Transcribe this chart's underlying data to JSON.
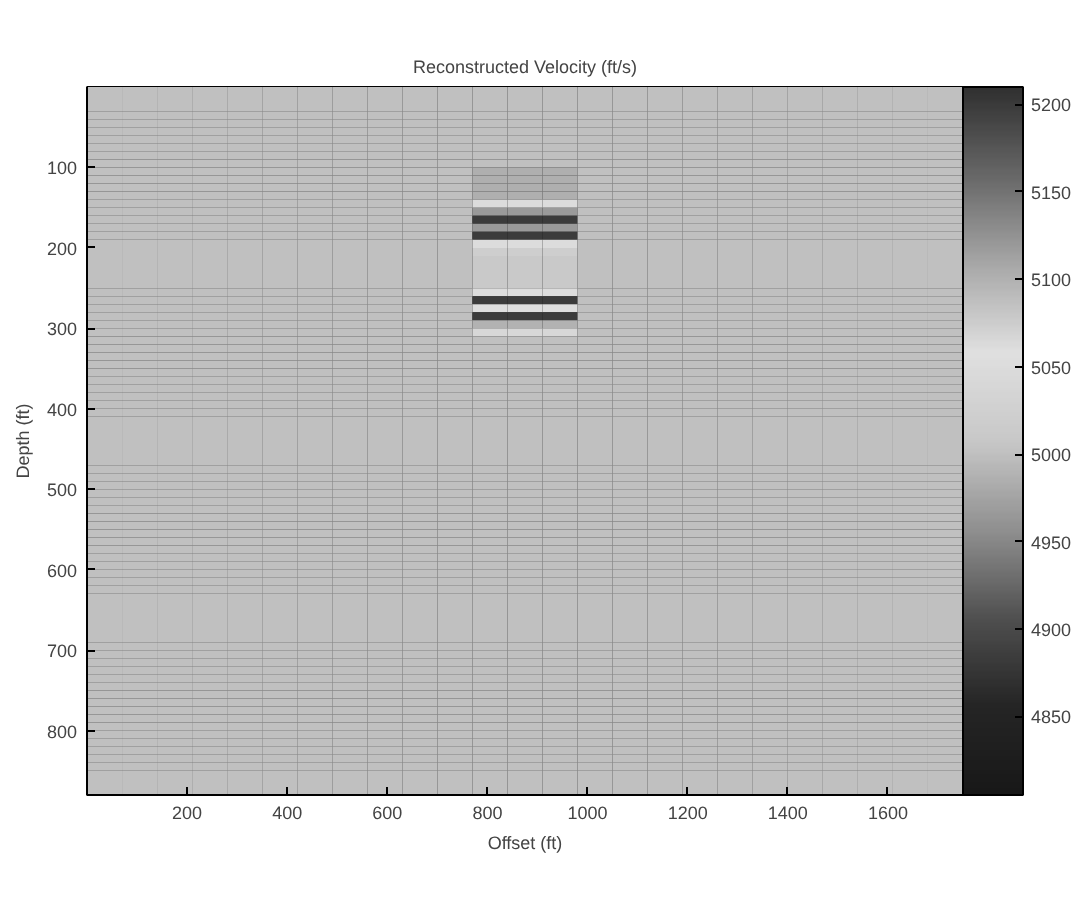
{
  "chart_data": {
    "type": "heatmap",
    "title": "Reconstructed Velocity (ft/s)",
    "xlabel": "Offset (ft)",
    "ylabel": "Depth (ft)",
    "xlim": [
      0,
      1750
    ],
    "ylim": [
      880,
      0
    ],
    "xticks": [
      200,
      400,
      600,
      800,
      1000,
      1200,
      1400,
      1600
    ],
    "yticks": [
      100,
      200,
      300,
      400,
      500,
      600,
      700,
      800
    ],
    "clim": [
      4805,
      5210
    ],
    "cticks": [
      4850,
      4900,
      4950,
      5000,
      5050,
      5100,
      5150,
      5200
    ],
    "colors": [
      "#181818",
      "#252525",
      "#505050",
      "#909090",
      "#c8c8c8",
      "#e0e0e0",
      "#a8a8a8",
      "#686868",
      "#303030"
    ],
    "cells": [
      [
        5000,
        5000,
        5000,
        5000,
        5000,
        5000,
        5000,
        5000,
        5000,
        5000,
        5000,
        5000,
        5000,
        5000,
        5000,
        5000,
        5000,
        5000,
        5000,
        5000,
        5000,
        5000,
        5000,
        5000,
        5000
      ],
      [
        5000,
        5000,
        5000,
        5000,
        5000,
        5000,
        5000,
        5000,
        5000,
        5000,
        5000,
        5000,
        5000,
        5000,
        5000,
        5000,
        5000,
        5000,
        5000,
        5000,
        5000,
        5000,
        5000,
        5000,
        5000
      ],
      [
        5000,
        5000,
        5000,
        5000,
        5000,
        5000,
        5000,
        5000,
        5000,
        5000,
        5000,
        5000,
        5000,
        5000,
        5000,
        5000,
        5000,
        5000,
        5000,
        5000,
        5000,
        5000,
        5000,
        5000,
        5000
      ],
      [
        5000,
        5000,
        5000,
        5000,
        5000,
        5000,
        5000,
        5000,
        5000,
        5000,
        5000,
        5000,
        5000,
        5000,
        5000,
        5000,
        5000,
        5000,
        5000,
        5000,
        5000,
        5000,
        5000,
        5000,
        5000
      ],
      [
        5000,
        5000,
        5000,
        5000,
        5000,
        5000,
        5000,
        5000,
        5000,
        5000,
        5000,
        5000,
        5000,
        5000,
        5000,
        5000,
        5000,
        5000,
        5000,
        5000,
        5000,
        5000,
        5000,
        5000,
        5000
      ],
      [
        5000,
        5000,
        5000,
        5000,
        5000,
        5000,
        5000,
        5000,
        5000,
        5000,
        5000,
        5000,
        5000,
        5000,
        5000,
        5000,
        5000,
        5000,
        5000,
        5000,
        5000,
        5000,
        5000,
        5000,
        5000
      ],
      [
        5000,
        5000,
        5000,
        5000,
        5000,
        5000,
        5000,
        5000,
        5000,
        5000,
        5000,
        5000,
        5000,
        5000,
        5000,
        5000,
        5000,
        5000,
        5000,
        5000,
        5000,
        5000,
        5000,
        5000,
        5000
      ],
      [
        5000,
        5000,
        5000,
        5000,
        5000,
        5000,
        5000,
        5000,
        5000,
        5000,
        5000,
        5000,
        5000,
        5000,
        5000,
        5000,
        5000,
        5000,
        5000,
        5000,
        5000,
        5000,
        5000,
        5000,
        5000
      ],
      [
        5000,
        5000,
        5000,
        5000,
        5000,
        5000,
        5000,
        5000,
        5000,
        5000,
        5000,
        5000,
        5000,
        5000,
        5000,
        5000,
        5000,
        5000,
        5000,
        5000,
        5000,
        5000,
        5000,
        5000,
        5000
      ],
      [
        5000,
        5000,
        5000,
        5000,
        5000,
        5000,
        5000,
        5000,
        5000,
        5000,
        5000,
        5000,
        5000,
        5000,
        5000,
        5000,
        5000,
        5000,
        5000,
        5000,
        5000,
        5000,
        5000,
        5000,
        5000
      ],
      [
        5000,
        5000,
        5000,
        5000,
        5000,
        5000,
        5000,
        5000,
        5000,
        5000,
        5000,
        4985,
        4985,
        4985,
        5000,
        5000,
        5000,
        5000,
        5000,
        5000,
        5000,
        5000,
        5000,
        5000,
        5000
      ],
      [
        5000,
        5000,
        5000,
        5000,
        5000,
        5000,
        5000,
        5000,
        5000,
        5000,
        5000,
        4985,
        4985,
        4985,
        5000,
        5000,
        5000,
        5000,
        5000,
        5000,
        5000,
        5000,
        5000,
        5000,
        5000
      ],
      [
        5000,
        5000,
        5000,
        5000,
        5000,
        5000,
        5000,
        5000,
        5000,
        5000,
        5000,
        4985,
        4985,
        4985,
        5000,
        5000,
        5000,
        5000,
        5000,
        5000,
        5000,
        5000,
        5000,
        5000,
        5000
      ],
      [
        5000,
        5000,
        5000,
        5000,
        5000,
        5000,
        5000,
        5000,
        5000,
        5000,
        5000,
        4985,
        4985,
        4985,
        5000,
        5000,
        5000,
        5000,
        5000,
        5000,
        5000,
        5000,
        5000,
        5000,
        5000
      ],
      [
        5000,
        5000,
        5000,
        5000,
        5000,
        5000,
        5000,
        5000,
        5000,
        5000,
        5000,
        5050,
        5050,
        5050,
        5000,
        5000,
        5000,
        5000,
        5000,
        5000,
        5000,
        5000,
        5000,
        5000,
        5000
      ],
      [
        5000,
        5000,
        5000,
        5000,
        5000,
        5000,
        5000,
        5000,
        5000,
        5000,
        5000,
        5120,
        5120,
        5120,
        5000,
        5000,
        5000,
        5000,
        5000,
        5000,
        5000,
        5000,
        5000,
        5000,
        5000
      ],
      [
        5000,
        5000,
        5000,
        5000,
        5000,
        5000,
        5000,
        5000,
        5000,
        5000,
        5000,
        5200,
        5200,
        5200,
        5000,
        5000,
        5000,
        5000,
        5000,
        5000,
        5000,
        5000,
        5000,
        5000,
        5000
      ],
      [
        5000,
        5000,
        5000,
        5000,
        5000,
        5000,
        5000,
        5000,
        5000,
        5000,
        5000,
        5120,
        5120,
        5120,
        5000,
        5000,
        5000,
        5000,
        5000,
        5000,
        5000,
        5000,
        5000,
        5000,
        5000
      ],
      [
        5000,
        5000,
        5000,
        5000,
        5000,
        5000,
        5000,
        5000,
        5000,
        5000,
        5000,
        5200,
        5200,
        5200,
        5000,
        5000,
        5000,
        5000,
        5000,
        5000,
        5000,
        5000,
        5000,
        5000,
        5000
      ],
      [
        5000,
        5000,
        5000,
        5000,
        5000,
        5000,
        5000,
        5000,
        5000,
        5000,
        5000,
        5050,
        5050,
        5050,
        5000,
        5000,
        5000,
        5000,
        5000,
        5000,
        5000,
        5000,
        5000,
        5000,
        5000
      ],
      [
        5000,
        5000,
        5000,
        5000,
        5000,
        5000,
        5000,
        5000,
        5000,
        5000,
        5000,
        5020,
        5020,
        5020,
        5000,
        5000,
        5000,
        5000,
        5000,
        5000,
        5000,
        5000,
        5000,
        5000,
        5000
      ],
      [
        5000,
        5000,
        5000,
        5000,
        5000,
        5000,
        5000,
        5000,
        5000,
        5000,
        5000,
        5010,
        5010,
        5010,
        5000,
        5000,
        5000,
        5000,
        5000,
        5000,
        5000,
        5000,
        5000,
        5000,
        5000
      ],
      [
        5000,
        5000,
        5000,
        5000,
        5000,
        5000,
        5000,
        5000,
        5000,
        5000,
        5000,
        5010,
        5010,
        5010,
        5000,
        5000,
        5000,
        5000,
        5000,
        5000,
        5000,
        5000,
        5000,
        5000,
        5000
      ],
      [
        5000,
        5000,
        5000,
        5000,
        5000,
        5000,
        5000,
        5000,
        5000,
        5000,
        5000,
        5010,
        5010,
        5010,
        5000,
        5000,
        5000,
        5000,
        5000,
        5000,
        5000,
        5000,
        5000,
        5000,
        5000
      ],
      [
        5000,
        5000,
        5000,
        5000,
        5000,
        5000,
        5000,
        5000,
        5000,
        5000,
        5000,
        5010,
        5010,
        5010,
        5000,
        5000,
        5000,
        5000,
        5000,
        5000,
        5000,
        5000,
        5000,
        5000,
        5000
      ],
      [
        5000,
        5000,
        5000,
        5000,
        5000,
        5000,
        5000,
        5000,
        5000,
        5000,
        5000,
        5050,
        5050,
        5050,
        5000,
        5000,
        5000,
        5000,
        5000,
        5000,
        5000,
        5000,
        5000,
        5000,
        5000
      ],
      [
        5000,
        5000,
        5000,
        5000,
        5000,
        5000,
        5000,
        5000,
        5000,
        5000,
        5000,
        5200,
        5200,
        5200,
        5000,
        5000,
        5000,
        5000,
        5000,
        5000,
        5000,
        5000,
        5000,
        5000,
        5000
      ],
      [
        5000,
        5000,
        5000,
        5000,
        5000,
        5000,
        5000,
        5000,
        5000,
        5000,
        5000,
        5060,
        5060,
        5060,
        5000,
        5000,
        5000,
        5000,
        5000,
        5000,
        5000,
        5000,
        5000,
        5000,
        5000
      ],
      [
        5000,
        5000,
        5000,
        5000,
        5000,
        5000,
        5000,
        5000,
        5000,
        5000,
        5000,
        5200,
        5200,
        5200,
        5000,
        5000,
        5000,
        5000,
        5000,
        5000,
        5000,
        5000,
        5000,
        5000,
        5000
      ],
      [
        5000,
        5000,
        5000,
        5000,
        5000,
        5000,
        5000,
        5000,
        5000,
        5000,
        5000,
        5100,
        5100,
        5100,
        5000,
        5000,
        5000,
        5000,
        5000,
        5000,
        5000,
        5000,
        5000,
        5000,
        5000
      ],
      [
        5000,
        5000,
        5000,
        5000,
        5000,
        5000,
        5000,
        5000,
        5000,
        5000,
        5000,
        5040,
        5040,
        5040,
        5000,
        5000,
        5000,
        5000,
        5000,
        5000,
        5000,
        5000,
        5000,
        5000,
        5000
      ],
      [
        5000,
        5000,
        5000,
        5000,
        5000,
        5000,
        5000,
        5000,
        5000,
        5000,
        5000,
        5000,
        5000,
        5000,
        5000,
        5000,
        5000,
        5000,
        5000,
        5000,
        5000,
        5000,
        5000,
        5000,
        5000
      ],
      [
        5000,
        5000,
        5000,
        5000,
        5000,
        5000,
        5000,
        5000,
        5000,
        5000,
        5000,
        5000,
        5000,
        5000,
        5000,
        5000,
        5000,
        5000,
        5000,
        5000,
        5000,
        5000,
        5000,
        5000,
        5000
      ],
      [
        5000,
        5000,
        5000,
        5000,
        5000,
        5000,
        5000,
        5000,
        5000,
        5000,
        5000,
        5000,
        5000,
        5000,
        5000,
        5000,
        5000,
        5000,
        5000,
        5000,
        5000,
        5000,
        5000,
        5000,
        5000
      ],
      [
        5000,
        5000,
        5000,
        5000,
        5000,
        5000,
        5000,
        5000,
        5000,
        5000,
        5000,
        5000,
        5000,
        5000,
        5000,
        5000,
        5000,
        5000,
        5000,
        5000,
        5000,
        5000,
        5000,
        5000,
        5000
      ],
      [
        5000,
        5000,
        5000,
        5000,
        5000,
        5000,
        5000,
        5000,
        5000,
        5000,
        5000,
        5000,
        5000,
        5000,
        5000,
        5000,
        5000,
        5000,
        5000,
        5000,
        5000,
        5000,
        5000,
        5000,
        5000
      ],
      [
        5000,
        5000,
        5000,
        5000,
        5000,
        5000,
        5000,
        5000,
        5000,
        5000,
        5000,
        5000,
        5000,
        5000,
        5000,
        5000,
        5000,
        5000,
        5000,
        5000,
        5000,
        5000,
        5000,
        5000,
        5000
      ],
      [
        5000,
        5000,
        5000,
        5000,
        5000,
        5000,
        5000,
        5000,
        5000,
        5000,
        5000,
        5000,
        5000,
        5000,
        5000,
        5000,
        5000,
        5000,
        5000,
        5000,
        5000,
        5000,
        5000,
        5000,
        5000
      ],
      [
        5000,
        5000,
        5000,
        5000,
        5000,
        5000,
        5000,
        5000,
        5000,
        5000,
        5000,
        5000,
        5000,
        5000,
        5000,
        5000,
        5000,
        5000,
        5000,
        5000,
        5000,
        5000,
        5000,
        5000,
        5000
      ],
      [
        5000,
        5000,
        5000,
        5000,
        5000,
        5000,
        5000,
        5000,
        5000,
        5000,
        5000,
        5000,
        5000,
        5000,
        5000,
        5000,
        5000,
        5000,
        5000,
        5000,
        5000,
        5000,
        5000,
        5000,
        5000
      ],
      [
        5000,
        5000,
        5000,
        5000,
        5000,
        5000,
        5000,
        5000,
        5000,
        5000,
        5000,
        5000,
        5000,
        5000,
        5000,
        5000,
        5000,
        5000,
        5000,
        5000,
        5000,
        5000,
        5000,
        5000,
        5000
      ],
      [
        5000,
        5000,
        5000,
        5000,
        5000,
        5000,
        5000,
        5000,
        5000,
        5000,
        5000,
        5000,
        5000,
        5000,
        5000,
        5000,
        5000,
        5000,
        5000,
        5000,
        5000,
        5000,
        5000,
        5000,
        5000
      ],
      [
        5000,
        5000,
        5000,
        5000,
        5000,
        5000,
        5000,
        5000,
        5000,
        5000,
        5000,
        5000,
        5000,
        5000,
        5000,
        5000,
        5000,
        5000,
        5000,
        5000,
        5000,
        5000,
        5000,
        5000,
        5000
      ],
      [
        5000,
        5000,
        5000,
        5000,
        5000,
        5000,
        5000,
        5000,
        5000,
        5000,
        5000,
        5000,
        5000,
        5000,
        5000,
        5000,
        5000,
        5000,
        5000,
        5000,
        5000,
        5000,
        5000,
        5000,
        5000
      ],
      [
        5000,
        5000,
        5000,
        5000,
        5000,
        5000,
        5000,
        5000,
        5000,
        5000,
        5000,
        5000,
        5000,
        5000,
        5000,
        5000,
        5000,
        5000,
        5000,
        5000,
        5000,
        5000,
        5000,
        5000,
        5000
      ],
      [
        5000,
        5000,
        5000,
        5000,
        5000,
        5000,
        5000,
        5000,
        5000,
        5000,
        5000,
        5000,
        5000,
        5000,
        5000,
        5000,
        5000,
        5000,
        5000,
        5000,
        5000,
        5000,
        5000,
        5000,
        5000
      ],
      [
        5000,
        5000,
        5000,
        5000,
        5000,
        5000,
        5000,
        5000,
        5000,
        5000,
        5000,
        5000,
        5000,
        5000,
        5000,
        5000,
        5000,
        5000,
        5000,
        5000,
        5000,
        5000,
        5000,
        5000,
        5000
      ],
      [
        5000,
        5000,
        5000,
        5000,
        5000,
        5000,
        5000,
        5000,
        5000,
        5000,
        5000,
        5000,
        5000,
        5000,
        5000,
        5000,
        5000,
        5000,
        5000,
        5000,
        5000,
        5000,
        5000,
        5000,
        5000
      ],
      [
        5000,
        5000,
        5000,
        5000,
        5000,
        5000,
        5000,
        5000,
        5000,
        5000,
        5000,
        5000,
        5000,
        5000,
        5000,
        5000,
        5000,
        5000,
        5000,
        5000,
        5000,
        5000,
        5000,
        5000,
        5000
      ],
      [
        5000,
        5000,
        5000,
        5000,
        5000,
        5000,
        5000,
        5000,
        5000,
        5000,
        5000,
        5000,
        5000,
        5000,
        5000,
        5000,
        5000,
        5000,
        5000,
        5000,
        5000,
        5000,
        5000,
        5000,
        5000
      ],
      [
        5000,
        5000,
        5000,
        5000,
        5000,
        5000,
        5000,
        5000,
        5000,
        5000,
        5000,
        5000,
        5000,
        5000,
        5000,
        5000,
        5000,
        5000,
        5000,
        5000,
        5000,
        5000,
        5000,
        5000,
        5000
      ],
      [
        5000,
        5000,
        5000,
        5000,
        5000,
        5000,
        5000,
        5000,
        5000,
        5000,
        5000,
        5000,
        5000,
        5000,
        5000,
        5000,
        5000,
        5000,
        5000,
        5000,
        5000,
        5000,
        5000,
        5000,
        5000
      ],
      [
        5000,
        5000,
        5000,
        5000,
        5000,
        5000,
        5000,
        5000,
        5000,
        5000,
        5000,
        5000,
        5000,
        5000,
        5000,
        5000,
        5000,
        5000,
        5000,
        5000,
        5000,
        5000,
        5000,
        5000,
        5000
      ],
      [
        5000,
        5000,
        5000,
        5000,
        5000,
        5000,
        5000,
        5000,
        5000,
        5000,
        5000,
        5000,
        5000,
        5000,
        5000,
        5000,
        5000,
        5000,
        5000,
        5000,
        5000,
        5000,
        5000,
        5000,
        5000
      ],
      [
        5000,
        5000,
        5000,
        5000,
        5000,
        5000,
        5000,
        5000,
        5000,
        5000,
        5000,
        5000,
        5000,
        5000,
        5000,
        5000,
        5000,
        5000,
        5000,
        5000,
        5000,
        5000,
        5000,
        5000,
        5000
      ],
      [
        5000,
        5000,
        5000,
        5000,
        5000,
        5000,
        5000,
        5000,
        5000,
        5000,
        5000,
        5000,
        5000,
        5000,
        5000,
        5000,
        5000,
        5000,
        5000,
        5000,
        5000,
        5000,
        5000,
        5000,
        5000
      ],
      [
        5000,
        5000,
        5000,
        5000,
        5000,
        5000,
        5000,
        5000,
        5000,
        5000,
        5000,
        5000,
        5000,
        5000,
        5000,
        5000,
        5000,
        5000,
        5000,
        5000,
        5000,
        5000,
        5000,
        5000,
        5000
      ],
      [
        5000,
        5000,
        5000,
        5000,
        5000,
        5000,
        5000,
        5000,
        5000,
        5000,
        5000,
        5000,
        5000,
        5000,
        5000,
        5000,
        5000,
        5000,
        5000,
        5000,
        5000,
        5000,
        5000,
        5000,
        5000
      ],
      [
        5000,
        5000,
        5000,
        5000,
        5000,
        5000,
        5000,
        5000,
        5000,
        5000,
        5000,
        5000,
        5000,
        5000,
        5000,
        5000,
        5000,
        5000,
        5000,
        5000,
        5000,
        5000,
        5000,
        5000,
        5000
      ],
      [
        5000,
        5000,
        5000,
        5000,
        5000,
        5000,
        5000,
        5000,
        5000,
        5000,
        5000,
        5000,
        5000,
        5000,
        5000,
        5000,
        5000,
        5000,
        5000,
        5000,
        5000,
        5000,
        5000,
        5000,
        5000
      ],
      [
        5000,
        5000,
        5000,
        5000,
        5000,
        5000,
        5000,
        5000,
        5000,
        5000,
        5000,
        5000,
        5000,
        5000,
        5000,
        5000,
        5000,
        5000,
        5000,
        5000,
        5000,
        5000,
        5000,
        5000,
        5000
      ],
      [
        5000,
        5000,
        5000,
        5000,
        5000,
        5000,
        5000,
        5000,
        5000,
        5000,
        5000,
        5000,
        5000,
        5000,
        5000,
        5000,
        5000,
        5000,
        5000,
        5000,
        5000,
        5000,
        5000,
        5000,
        5000
      ],
      [
        5000,
        5000,
        5000,
        5000,
        5000,
        5000,
        5000,
        5000,
        5000,
        5000,
        5000,
        5000,
        5000,
        5000,
        5000,
        5000,
        5000,
        5000,
        5000,
        5000,
        5000,
        5000,
        5000,
        5000,
        5000
      ],
      [
        5000,
        5000,
        5000,
        5000,
        5000,
        5000,
        5000,
        5000,
        5000,
        5000,
        5000,
        5000,
        5000,
        5000,
        5000,
        5000,
        5000,
        5000,
        5000,
        5000,
        5000,
        5000,
        5000,
        5000,
        5000
      ],
      [
        5000,
        5000,
        5000,
        5000,
        5000,
        5000,
        5000,
        5000,
        5000,
        5000,
        5000,
        5000,
        5000,
        5000,
        5000,
        5000,
        5000,
        5000,
        5000,
        5000,
        5000,
        5000,
        5000,
        5000,
        5000
      ],
      [
        5000,
        5000,
        5000,
        5000,
        5000,
        5000,
        5000,
        5000,
        5000,
        5000,
        5000,
        5000,
        5000,
        5000,
        5000,
        5000,
        5000,
        5000,
        5000,
        5000,
        5000,
        5000,
        5000,
        5000,
        5000
      ],
      [
        5000,
        5000,
        5000,
        5000,
        5000,
        5000,
        5000,
        5000,
        5000,
        5000,
        5000,
        5000,
        5000,
        5000,
        5000,
        5000,
        5000,
        5000,
        5000,
        5000,
        5000,
        5000,
        5000,
        5000,
        5000
      ],
      [
        5000,
        5000,
        5000,
        5000,
        5000,
        5000,
        5000,
        5000,
        5000,
        5000,
        5000,
        5000,
        5000,
        5000,
        5000,
        5000,
        5000,
        5000,
        5000,
        5000,
        5000,
        5000,
        5000,
        5000,
        5000
      ],
      [
        5000,
        5000,
        5000,
        5000,
        5000,
        5000,
        5000,
        5000,
        5000,
        5000,
        5000,
        5000,
        5000,
        5000,
        5000,
        5000,
        5000,
        5000,
        5000,
        5000,
        5000,
        5000,
        5000,
        5000,
        5000
      ],
      [
        5000,
        5000,
        5000,
        5000,
        5000,
        5000,
        5000,
        5000,
        5000,
        5000,
        5000,
        5000,
        5000,
        5000,
        5000,
        5000,
        5000,
        5000,
        5000,
        5000,
        5000,
        5000,
        5000,
        5000,
        5000
      ],
      [
        5000,
        5000,
        5000,
        5000,
        5000,
        5000,
        5000,
        5000,
        5000,
        5000,
        5000,
        5000,
        5000,
        5000,
        5000,
        5000,
        5000,
        5000,
        5000,
        5000,
        5000,
        5000,
        5000,
        5000,
        5000
      ],
      [
        5000,
        5000,
        5000,
        5000,
        5000,
        5000,
        5000,
        5000,
        5000,
        5000,
        5000,
        5000,
        5000,
        5000,
        5000,
        5000,
        5000,
        5000,
        5000,
        5000,
        5000,
        5000,
        5000,
        5000,
        5000
      ],
      [
        5000,
        5000,
        5000,
        5000,
        5000,
        5000,
        5000,
        5000,
        5000,
        5000,
        5000,
        5000,
        5000,
        5000,
        5000,
        5000,
        5000,
        5000,
        5000,
        5000,
        5000,
        5000,
        5000,
        5000,
        5000
      ],
      [
        5000,
        5000,
        5000,
        5000,
        5000,
        5000,
        5000,
        5000,
        5000,
        5000,
        5000,
        5000,
        5000,
        5000,
        5000,
        5000,
        5000,
        5000,
        5000,
        5000,
        5000,
        5000,
        5000,
        5000,
        5000
      ],
      [
        5000,
        5000,
        5000,
        5000,
        5000,
        5000,
        5000,
        5000,
        5000,
        5000,
        5000,
        5000,
        5000,
        5000,
        5000,
        5000,
        5000,
        5000,
        5000,
        5000,
        5000,
        5000,
        5000,
        5000,
        5000
      ],
      [
        5000,
        5000,
        5000,
        5000,
        5000,
        5000,
        5000,
        5000,
        5000,
        5000,
        5000,
        5000,
        5000,
        5000,
        5000,
        5000,
        5000,
        5000,
        5000,
        5000,
        5000,
        5000,
        5000,
        5000,
        5000
      ],
      [
        5000,
        5000,
        5000,
        5000,
        5000,
        5000,
        5000,
        5000,
        5000,
        5000,
        5000,
        5000,
        5000,
        5000,
        5000,
        5000,
        5000,
        5000,
        5000,
        5000,
        5000,
        5000,
        5000,
        5000,
        5000
      ],
      [
        5000,
        5000,
        5000,
        5000,
        5000,
        5000,
        5000,
        5000,
        5000,
        5000,
        5000,
        5000,
        5000,
        5000,
        5000,
        5000,
        5000,
        5000,
        5000,
        5000,
        5000,
        5000,
        5000,
        5000,
        5000
      ],
      [
        5000,
        5000,
        5000,
        5000,
        5000,
        5000,
        5000,
        5000,
        5000,
        5000,
        5000,
        5000,
        5000,
        5000,
        5000,
        5000,
        5000,
        5000,
        5000,
        5000,
        5000,
        5000,
        5000,
        5000,
        5000
      ],
      [
        5000,
        5000,
        5000,
        5000,
        5000,
        5000,
        5000,
        5000,
        5000,
        5000,
        5000,
        5000,
        5000,
        5000,
        5000,
        5000,
        5000,
        5000,
        5000,
        5000,
        5000,
        5000,
        5000,
        5000,
        5000
      ],
      [
        5000,
        5000,
        5000,
        5000,
        5000,
        5000,
        5000,
        5000,
        5000,
        5000,
        5000,
        5000,
        5000,
        5000,
        5000,
        5000,
        5000,
        5000,
        5000,
        5000,
        5000,
        5000,
        5000,
        5000,
        5000
      ],
      [
        5000,
        5000,
        5000,
        5000,
        5000,
        5000,
        5000,
        5000,
        5000,
        5000,
        5000,
        5000,
        5000,
        5000,
        5000,
        5000,
        5000,
        5000,
        5000,
        5000,
        5000,
        5000,
        5000,
        5000,
        5000
      ],
      [
        5000,
        5000,
        5000,
        5000,
        5000,
        5000,
        5000,
        5000,
        5000,
        5000,
        5000,
        5000,
        5000,
        5000,
        5000,
        5000,
        5000,
        5000,
        5000,
        5000,
        5000,
        5000,
        5000,
        5000,
        5000
      ],
      [
        5000,
        5000,
        5000,
        5000,
        5000,
        5000,
        5000,
        5000,
        5000,
        5000,
        5000,
        5000,
        5000,
        5000,
        5000,
        5000,
        5000,
        5000,
        5000,
        5000,
        5000,
        5000,
        5000,
        5000,
        5000
      ],
      [
        5000,
        5000,
        5000,
        5000,
        5000,
        5000,
        5000,
        5000,
        5000,
        5000,
        5000,
        5000,
        5000,
        5000,
        5000,
        5000,
        5000,
        5000,
        5000,
        5000,
        5000,
        5000,
        5000,
        5000,
        5000
      ],
      [
        5000,
        5000,
        5000,
        5000,
        5000,
        5000,
        5000,
        5000,
        5000,
        5000,
        5000,
        5000,
        5000,
        5000,
        5000,
        5000,
        5000,
        5000,
        5000,
        5000,
        5000,
        5000,
        5000,
        5000,
        5000
      ],
      [
        5000,
        5000,
        5000,
        5000,
        5000,
        5000,
        5000,
        5000,
        5000,
        5000,
        5000,
        5000,
        5000,
        5000,
        5000,
        5000,
        5000,
        5000,
        5000,
        5000,
        5000,
        5000,
        5000,
        5000,
        5000
      ],
      [
        5000,
        5000,
        5000,
        5000,
        5000,
        5000,
        5000,
        5000,
        5000,
        5000,
        5000,
        5000,
        5000,
        5000,
        5000,
        5000,
        5000,
        5000,
        5000,
        5000,
        5000,
        5000,
        5000,
        5000,
        5000
      ]
    ]
  }
}
